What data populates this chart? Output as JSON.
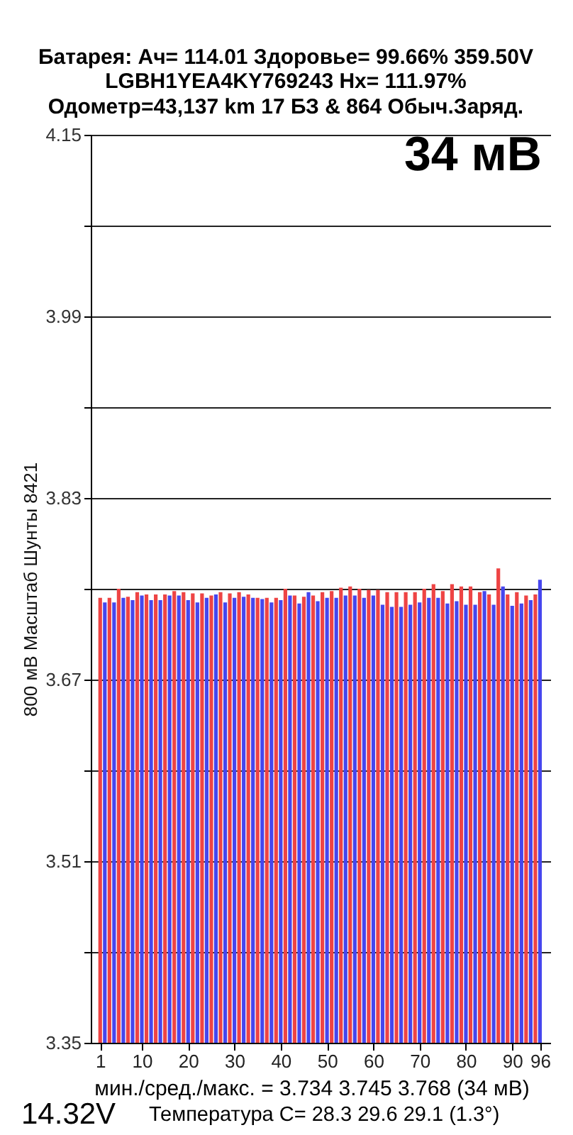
{
  "chart_data": {
    "type": "bar",
    "title": "Батарея:  Ач= 114.01  Здоровье= 99.66%  359.50V",
    "subtitle": "LGBH1YEA4KY769243  Hx= 111.97%\nОдометр=43,137 km 17 БЗ & 864 Обыч.Заряд.",
    "ylabel": "800 мВ Масштаб  Шунты 8421",
    "x": [
      1,
      2,
      3,
      4,
      5,
      6,
      7,
      8,
      9,
      10,
      11,
      12,
      13,
      14,
      15,
      16,
      17,
      18,
      19,
      20,
      21,
      22,
      23,
      24,
      25,
      26,
      27,
      28,
      29,
      30,
      31,
      32,
      33,
      34,
      35,
      36,
      37,
      38,
      39,
      40,
      41,
      42,
      43,
      44,
      45,
      46,
      47,
      48,
      49,
      50,
      51,
      52,
      53,
      54,
      55,
      56,
      57,
      58,
      59,
      60,
      61,
      62,
      63,
      64,
      65,
      66,
      67,
      68,
      69,
      70,
      71,
      72,
      73,
      74,
      75,
      76,
      77,
      78,
      79,
      80,
      81,
      82,
      83,
      84,
      85,
      86,
      87,
      88,
      89,
      90,
      91,
      92,
      93,
      94,
      95,
      96
    ],
    "values": [
      3.742,
      3.738,
      3.742,
      3.738,
      3.75,
      3.742,
      3.743,
      3.74,
      3.747,
      3.744,
      3.745,
      3.74,
      3.745,
      3.74,
      3.745,
      3.744,
      3.748,
      3.744,
      3.747,
      3.74,
      3.746,
      3.738,
      3.746,
      3.742,
      3.744,
      3.745,
      3.747,
      3.738,
      3.746,
      3.742,
      3.747,
      3.743,
      3.745,
      3.742,
      3.742,
      3.741,
      3.742,
      3.738,
      3.742,
      3.74,
      3.75,
      3.744,
      3.744,
      3.737,
      3.743,
      3.747,
      3.744,
      3.739,
      3.747,
      3.742,
      3.748,
      3.742,
      3.751,
      3.744,
      3.752,
      3.744,
      3.75,
      3.742,
      3.749,
      3.744,
      3.749,
      3.736,
      3.747,
      3.734,
      3.747,
      3.734,
      3.747,
      3.736,
      3.747,
      3.738,
      3.75,
      3.742,
      3.754,
      3.742,
      3.748,
      3.737,
      3.754,
      3.739,
      3.752,
      3.736,
      3.752,
      3.736,
      3.747,
      3.748,
      3.745,
      3.736,
      3.768,
      3.752,
      3.745,
      3.735,
      3.747,
      3.737,
      3.744,
      3.74,
      3.745,
      3.758
    ],
    "colors": [
      "#ee4444",
      "#4646ee",
      "#ee4444",
      "#4646ee",
      "#ee4444",
      "#4646ee",
      "#ee4444",
      "#4646ee",
      "#ee4444",
      "#4646ee",
      "#ee4444",
      "#4646ee",
      "#ee4444",
      "#4646ee",
      "#ee4444",
      "#4646ee",
      "#ee4444",
      "#4646ee",
      "#ee4444",
      "#4646ee",
      "#ee4444",
      "#4646ee",
      "#ee4444",
      "#4646ee",
      "#ee4444",
      "#4646ee",
      "#ee4444",
      "#4646ee",
      "#ee4444",
      "#4646ee",
      "#ee4444",
      "#4646ee",
      "#ee4444",
      "#4646ee",
      "#ee4444",
      "#4646ee",
      "#ee4444",
      "#4646ee",
      "#ee4444",
      "#4646ee",
      "#ee4444",
      "#4646ee",
      "#ee4444",
      "#4646ee",
      "#ee4444",
      "#4646ee",
      "#ee4444",
      "#4646ee",
      "#ee4444",
      "#4646ee",
      "#ee4444",
      "#4646ee",
      "#ee4444",
      "#4646ee",
      "#ee4444",
      "#4646ee",
      "#ee4444",
      "#4646ee",
      "#ee4444",
      "#4646ee",
      "#ee4444",
      "#4646ee",
      "#ee4444",
      "#4646ee",
      "#ee4444",
      "#4646ee",
      "#ee4444",
      "#4646ee",
      "#ee4444",
      "#4646ee",
      "#ee4444",
      "#4646ee",
      "#ee4444",
      "#4646ee",
      "#ee4444",
      "#4646ee",
      "#ee4444",
      "#4646ee",
      "#ee4444",
      "#4646ee",
      "#ee4444",
      "#4646ee",
      "#ee4444",
      "#4646ee",
      "#ee4444",
      "#4646ee",
      "#ee4444",
      "#4646ee",
      "#ee4444",
      "#4646ee",
      "#ee4444",
      "#4646ee",
      "#ee4444",
      "#4646ee",
      "#ee4444",
      "#4646ee"
    ],
    "xlim": [
      0.5,
      96.7
    ],
    "xticks": [
      1,
      10,
      20,
      30,
      40,
      50,
      60,
      70,
      80,
      90,
      96
    ],
    "ylim": [
      3.35,
      4.15
    ],
    "yticks": [
      3.35,
      {
        "value": 3.43,
        "label": null
      },
      3.51,
      {
        "value": 3.59,
        "label": null
      },
      3.67,
      {
        "value": 3.75,
        "label": null
      },
      3.83,
      {
        "value": 3.91,
        "label": null
      },
      3.99,
      {
        "value": 4.07,
        "label": null
      },
      4.15
    ],
    "grid": "y",
    "annotations": [
      "34 мВ",
      "мин./сред./макс. = 3.734 3.745 3.768  (34 мВ)",
      "14.32V",
      "Температура С= 28.3  29.6  29.1  (1.3°)"
    ]
  }
}
